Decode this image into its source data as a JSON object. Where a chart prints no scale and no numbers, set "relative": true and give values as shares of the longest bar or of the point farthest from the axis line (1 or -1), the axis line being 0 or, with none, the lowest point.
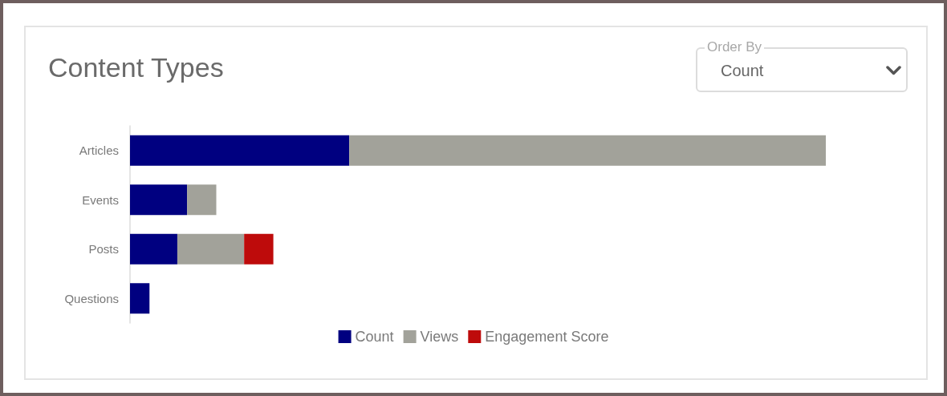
{
  "chart_data": {
    "type": "bar",
    "title": "Content Types",
    "orientation": "horizontal",
    "stacked": true,
    "relative": true,
    "categories": [
      "Articles",
      "Events",
      "Posts",
      "Questions"
    ],
    "series": [
      {
        "name": "Count",
        "color": "#000080",
        "values": [
          0.315,
          0.082,
          0.068,
          0.028
        ]
      },
      {
        "name": "Views",
        "color": "#a2a29a",
        "values": [
          0.685,
          0.042,
          0.096,
          null
        ]
      },
      {
        "name": "Engagement Score",
        "color": "#be0b0b",
        "values": [
          null,
          null,
          0.042,
          null
        ]
      }
    ],
    "legend": "bottom",
    "annotations": [
      "Order By",
      "Count"
    ]
  }
}
